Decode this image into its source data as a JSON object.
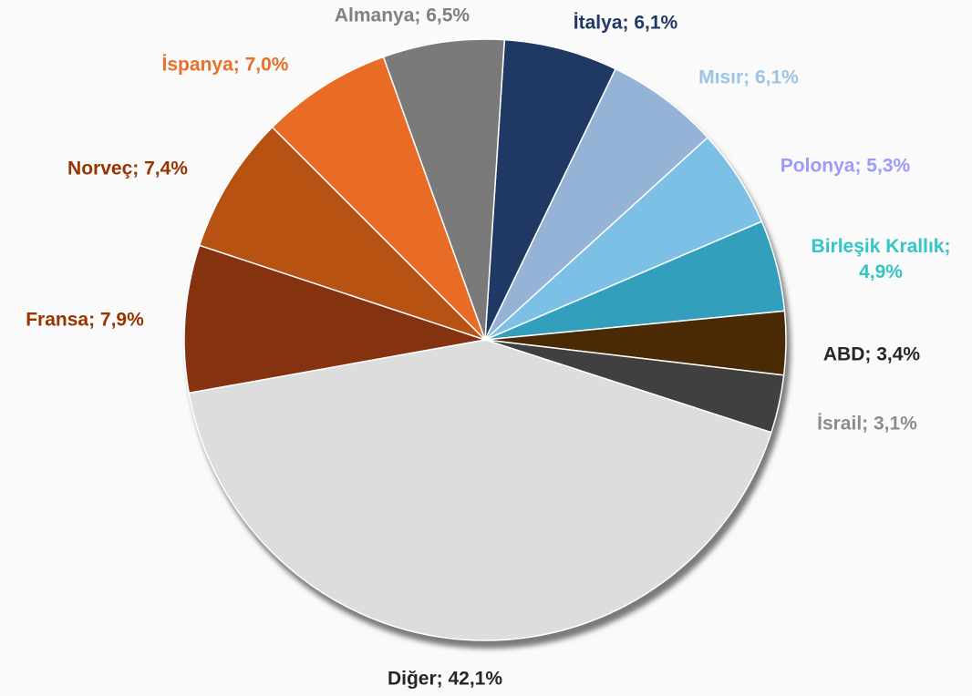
{
  "chart_data": {
    "type": "pie",
    "value_labels": [
      "İtalya; 6,1%",
      "Mısır; 6,1%",
      "Polonya; 5,3%",
      "Birleşik Krallık; 4,9%",
      "ABD; 3,4%",
      "İsrail; 3,1%",
      "Diğer; 42,1%",
      "Fransa; 7,9%",
      "Norveç; 7,4%",
      "İspanya; 7,0%",
      "Almanya; 6,5%"
    ],
    "values": [
      6.1,
      6.1,
      5.3,
      4.9,
      3.4,
      3.1,
      42.1,
      7.9,
      7.4,
      7.0,
      6.5
    ],
    "colors": [
      "#203864",
      "#95b3d7",
      "#7dc0e6",
      "#339fbd",
      "#4a2a05",
      "#404040",
      "#dddddd",
      "#843210",
      "#b85213",
      "#e86c25",
      "#7a7a7a"
    ],
    "label_colors": [
      "#1f3864",
      "#9dc3e6",
      "#9a9aff",
      "#33c6c6",
      "#262626",
      "#8c8c8c",
      "#262626",
      "#993300",
      "#993300",
      "#e8702a",
      "#808080"
    ]
  }
}
